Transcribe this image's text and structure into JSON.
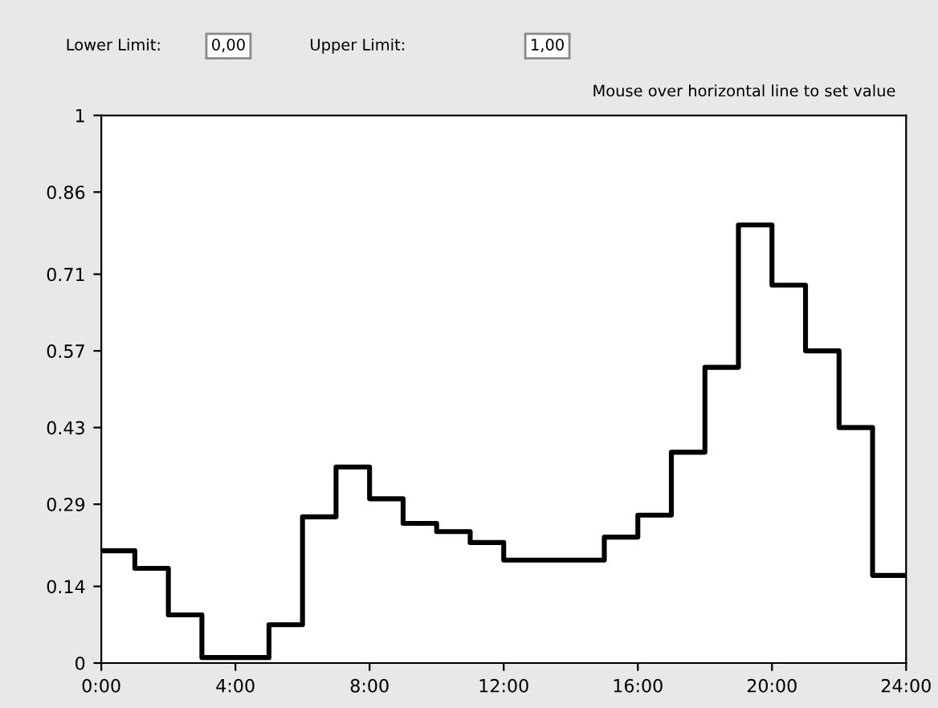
{
  "chart_data": {
    "type": "step",
    "annotations": [
      "Lower Limit:",
      "0,00",
      "Upper Limit:",
      "1,00",
      "Mouse over horizontal line to set value"
    ],
    "x": [
      0,
      1,
      2,
      3,
      4,
      5,
      6,
      7,
      8,
      9,
      10,
      11,
      12,
      13,
      14,
      15,
      16,
      17,
      18,
      19,
      20,
      21,
      22,
      23,
      24
    ],
    "series": [
      {
        "color": "#000000",
        "values": [
          0.205,
          0.173,
          0.088,
          0.01,
          0.01,
          0.07,
          0.267,
          0.358,
          0.3,
          0.255,
          0.24,
          0.22,
          0.188,
          0.188,
          0.188,
          0.23,
          0.27,
          0.385,
          0.54,
          0.8,
          0.69,
          0.57,
          0.43,
          0.16,
          0.16
        ]
      }
    ],
    "xlim": [
      0,
      24
    ],
    "xticks": [
      {
        "value": 0,
        "label": "0:00"
      },
      {
        "value": 4,
        "label": "4:00"
      },
      {
        "value": 8,
        "label": "8:00"
      },
      {
        "value": 12,
        "label": "12:00"
      },
      {
        "value": 16,
        "label": "16:00"
      },
      {
        "value": 20,
        "label": "20:00"
      },
      {
        "value": 24,
        "label": "24:00"
      }
    ],
    "ylim": [
      0,
      1
    ],
    "yticks": [
      0,
      0.14,
      0.29,
      0.43,
      0.57,
      0.71,
      0.86,
      1
    ],
    "grid": false,
    "legend": false
  }
}
